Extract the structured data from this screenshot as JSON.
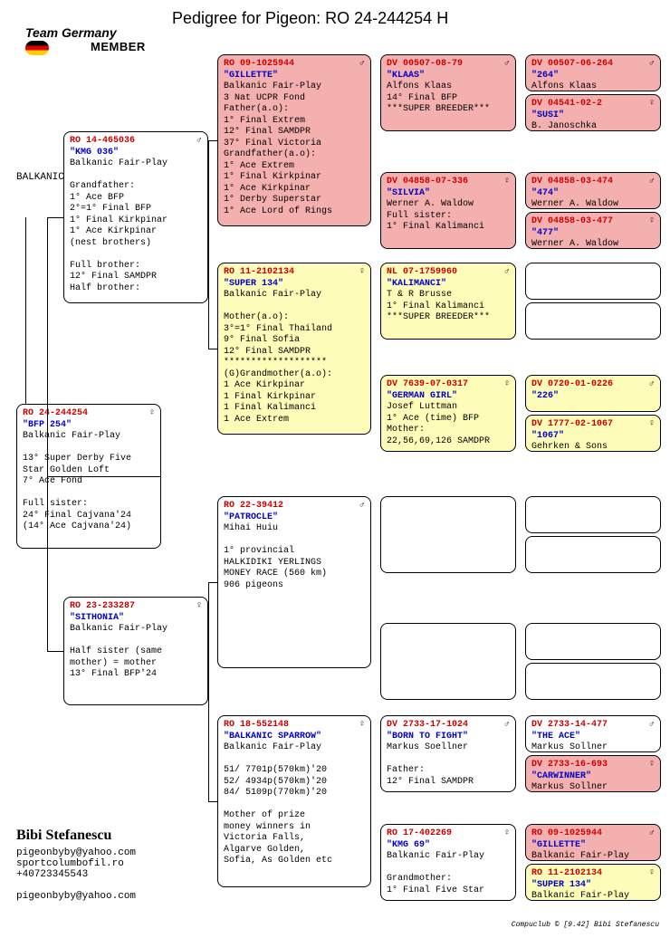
{
  "title": "Pedigree for Pigeon: RO  24-244254 H",
  "logo": {
    "line1": "Team Germany",
    "line2": "MEMBER"
  },
  "loft_label": "BALKANIC-FAIR-PLAY-LOFT",
  "contact": {
    "name": "Bibi Stefanescu",
    "lines": "pigeonbyby@yahoo.com\nsportcolumbofil.ro\n+40723345543\n\npigeonbyby@yahoo.com"
  },
  "footer": "Compuclub © [9.42]  Bibi Stefanescu",
  "sex_male": "♂",
  "sex_female": "♀",
  "subject": {
    "ring": "RO  24-244254",
    "sex": "♀",
    "name": "\"BFP 254\"",
    "text": "Balkanic Fair-Play\n\n13° Super Derby Five\nStar Golden Loft\n7° Ace Fond\n\nFull sister:\n24° Final Cajvana'24\n(14° Ace Cajvana'24)"
  },
  "sire": {
    "ring": "RO  14-465036",
    "sex": "♂",
    "name": "\"KMG 036\"",
    "text": "Balkanic Fair-Play\n\nGrandfather:\n1° Ace BFP\n2°=1° Final BFP\n1° Final Kirkpinar\n1° Ace Kirkpinar\n(nest brothers)\n\nFull brother:\n12° Final SAMDPR\nHalf brother:"
  },
  "dam": {
    "ring": "RO  23-233287",
    "sex": "♀",
    "name": "\"SITHONIA\"",
    "text": "Balkanic Fair-Play\n\nHalf sister (same\nmother) = mother\n13° Final BFP'24"
  },
  "gp_ss": {
    "ring": "RO  09-1025944",
    "sex": "♂",
    "name": "\"GILLETTE\"",
    "text": "Balkanic Fair-Play\n3 Nat UCPR Fond\nFather(a.o):\n1° Final Extrem\n12° Final SAMDPR\n37° Final Victoria\nGrandfather(a.o):\n1° Ace Extrem\n1° Final Kirkpinar\n1° Ace Kirkpinar\n1° Derby Superstar\n1° Ace Lord of Rings",
    "bg": "bg-pink"
  },
  "gp_sd": {
    "ring": "RO  11-2102134",
    "sex": "♀",
    "name": "\"SUPER 134\"",
    "text": "Balkanic Fair-Play\n\nMother(a.o):\n3°=1° Final Thailand\n9° Final Sofia\n12° Final SAMDPR\n*******************\n(G)Grandmother(a.o):\n1 Ace Kirkpinar\n1 Final Kirkpinar\n1 Final Kalimanci\n1 Ace Extrem",
    "bg": "bg-yellow"
  },
  "gp_ds": {
    "ring": "RO  22-39412",
    "sex": "♂",
    "name": "\"PATROCLE\"",
    "text": "Mihai Huiu\n\n1° provincial\nHALKIDIKI YERLINGS\nMONEY RACE (560 km)\n906 pigeons",
    "bg": "bg-white"
  },
  "gp_dd": {
    "ring": "RO  18-552148",
    "sex": "♀",
    "name": "\"BALKANIC SPARROW\"",
    "text": "Balkanic Fair-Play\n\n51/ 7701p(570km)'20\n52/ 4934p(570km)'20\n84/ 5109p(770km)'20\n\nMother of prize\nmoney winners in\nVictoria Falls,\nAlgarve Golden,\nSofia, As Golden etc",
    "bg": "bg-white"
  },
  "ggp": [
    {
      "ring": "DV  00507-08-79",
      "sex": "♂",
      "name": "\"KLAAS\"",
      "text": "Alfons Klaas\n14° Final BFP\n***SUPER BREEDER***",
      "bg": "bg-pink"
    },
    {
      "ring": "DV  04858-07-336",
      "sex": "♀",
      "name": "\"SILVIA\"",
      "text": "Werner A. Waldow\nFull sister:\n1° Final Kalimanci",
      "bg": "bg-pink"
    },
    {
      "ring": "NL  07-1759960",
      "sex": "♂",
      "name": "\"KALIMANCI\"",
      "text": "T & R Brusse\n1° Final Kalimanci\n***SUPER BREEDER***",
      "bg": "bg-yellow"
    },
    {
      "ring": "DV  7639-07-0317",
      "sex": "♀",
      "name": "\"GERMAN GIRL\"",
      "text": "Josef Luttman\n1° Ace (time) BFP\nMother:\n22,56,69,126 SAMDPR",
      "bg": "bg-yellow"
    },
    {
      "ring": "",
      "sex": "",
      "name": "",
      "text": "",
      "bg": "bg-white"
    },
    {
      "ring": "",
      "sex": "",
      "name": "",
      "text": "",
      "bg": "bg-white"
    },
    {
      "ring": "DV  2733-17-1024",
      "sex": "♂",
      "name": "\"BORN TO FIGHT\"",
      "text": "Markus Soellner\n\nFather:\n12° Final SAMDPR",
      "bg": "bg-white"
    },
    {
      "ring": "RO  17-402269",
      "sex": "♀",
      "name": "\"KMG 69\"",
      "text": "Balkanic Fair-Play\n\nGrandmother:\n1° Final Five Star",
      "bg": "bg-white"
    }
  ],
  "gggp": [
    {
      "ring": "DV  00507-06-264",
      "sex": "♂",
      "name": "\"264\"",
      "text": "Alfons Klaas",
      "bg": "bg-pink"
    },
    {
      "ring": "DV  04541-02-2",
      "sex": "♀",
      "name": "\"SUSI\"",
      "text": "B. Janoschka",
      "bg": "bg-pink"
    },
    {
      "ring": "DV  04858-03-474",
      "sex": "♂",
      "name": "\"474\"",
      "text": "Werner A. Waldow",
      "bg": "bg-pink"
    },
    {
      "ring": "DV  04858-03-477",
      "sex": "♀",
      "name": "\"477\"",
      "text": "Werner A. Waldow",
      "bg": "bg-pink"
    },
    {
      "ring": "",
      "sex": "",
      "name": "",
      "text": "",
      "bg": "bg-white"
    },
    {
      "ring": "",
      "sex": "",
      "name": "",
      "text": "",
      "bg": "bg-white"
    },
    {
      "ring": "DV  0720-01-0226",
      "sex": "♂",
      "name": "\"226\"",
      "text": "",
      "bg": "bg-yellow"
    },
    {
      "ring": "DV  1777-02-1067",
      "sex": "♀",
      "name": "\"1067\"",
      "text": "Gehrken & Sons",
      "bg": "bg-yellow"
    },
    {
      "ring": "",
      "sex": "",
      "name": "",
      "text": "",
      "bg": "bg-white"
    },
    {
      "ring": "",
      "sex": "",
      "name": "",
      "text": "",
      "bg": "bg-white"
    },
    {
      "ring": "",
      "sex": "",
      "name": "",
      "text": "",
      "bg": "bg-white"
    },
    {
      "ring": "",
      "sex": "",
      "name": "",
      "text": "",
      "bg": "bg-white"
    },
    {
      "ring": "DV  2733-14-477",
      "sex": "♂",
      "name": "\"THE ACE\"",
      "text": "Markus Sollner",
      "bg": "bg-white"
    },
    {
      "ring": "DV  2733-16-693",
      "sex": "♀",
      "name": "\"CARWINNER\"",
      "text": "Markus Sollner",
      "bg": "bg-pink"
    },
    {
      "ring": "RO  09-1025944",
      "sex": "♂",
      "name": "\"GILLETTE\"",
      "text": "Balkanic Fair-Play",
      "bg": "bg-pink"
    },
    {
      "ring": "RO  11-2102134",
      "sex": "♀",
      "name": "\"SUPER 134\"",
      "text": "Balkanic Fair-Play",
      "bg": "bg-yellow"
    }
  ],
  "layout": {
    "col": {
      "c0": 18,
      "c1": 70,
      "c2": 240,
      "c3": 420,
      "c4": 580
    },
    "w": {
      "w0": 160,
      "w1": 160,
      "w2": 170,
      "w3": 150,
      "w4": 150
    },
    "gp_h": 190,
    "ggp_h": 85,
    "gggp_h": 44,
    "gp_tops": [
      60,
      290,
      548,
      790
    ],
    "ggp_tops": [
      60,
      190,
      290,
      414,
      548,
      688,
      790,
      910
    ],
    "gggp_gap": 3
  }
}
